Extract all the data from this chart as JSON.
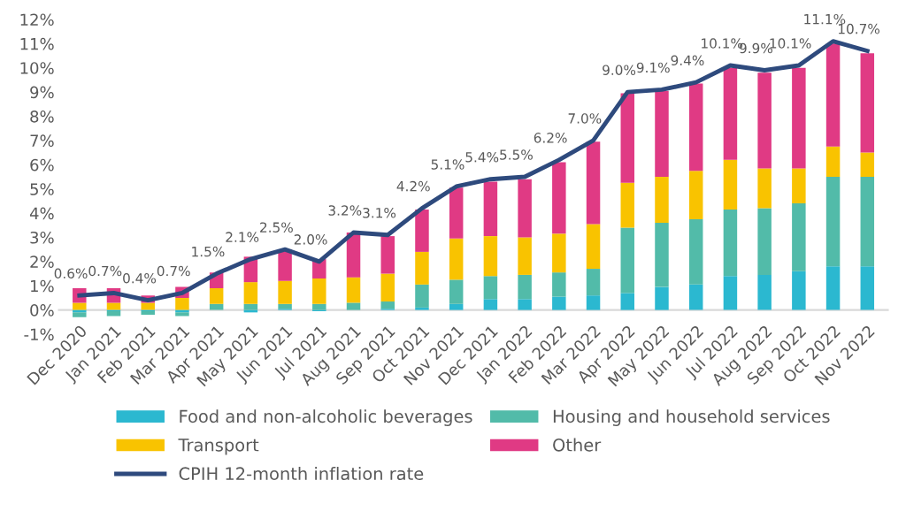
{
  "chart_data": {
    "type": "bar",
    "stacked": true,
    "categories": [
      "Dec 2020",
      "Jan 2021",
      "Feb 2021",
      "Mar 2021",
      "Apr 2021",
      "May 2021",
      "Jun 2021",
      "Jul 2021",
      "Aug 2021",
      "Sep 2021",
      "Oct 2021",
      "Nov 2021",
      "Dec 2021",
      "Jan 2022",
      "Feb 2022",
      "Mar 2022",
      "Apr 2022",
      "May 2022",
      "Jun 2022",
      "Jul 2022",
      "Aug 2022",
      "Sep 2022",
      "Oct 2022",
      "Nov 2022"
    ],
    "series": [
      {
        "name": "Food and non-alcoholic beverages",
        "color": "#2bb8d0",
        "values": [
          -0.1,
          -0.05,
          -0.05,
          -0.1,
          0,
          -0.1,
          0.05,
          -0.05,
          0,
          0.05,
          0.1,
          0.25,
          0.45,
          0.45,
          0.55,
          0.6,
          0.7,
          0.95,
          1.05,
          1.4,
          1.45,
          1.6,
          1.8,
          1.8
        ]
      },
      {
        "name": "Housing and household services",
        "color": "#52bba9",
        "values": [
          -0.2,
          -0.2,
          -0.15,
          -0.15,
          0.25,
          0.25,
          0.2,
          0.25,
          0.3,
          0.3,
          0.95,
          1.0,
          0.95,
          1.0,
          1.0,
          1.1,
          2.7,
          2.65,
          2.7,
          2.75,
          2.75,
          2.8,
          3.7,
          3.7
        ]
      },
      {
        "name": "Transport",
        "color": "#f9c300",
        "values": [
          0.3,
          0.3,
          0.3,
          0.5,
          0.65,
          0.9,
          0.95,
          1.05,
          1.05,
          1.15,
          1.35,
          1.7,
          1.65,
          1.55,
          1.6,
          1.85,
          1.85,
          1.9,
          2.0,
          2.05,
          1.65,
          1.45,
          1.25,
          1.0
        ]
      },
      {
        "name": "Other",
        "color": "#e03a84",
        "values": [
          0.6,
          0.6,
          0.3,
          0.45,
          0.65,
          1.05,
          1.3,
          0.8,
          1.85,
          1.55,
          1.75,
          2.1,
          2.25,
          2.4,
          2.95,
          3.4,
          3.7,
          3.55,
          3.6,
          3.8,
          3.95,
          4.15,
          4.25,
          4.1
        ]
      },
      {
        "name": "CPIH 12-month inflation rate",
        "type": "line",
        "color": "#2e4a7d",
        "values": [
          0.6,
          0.7,
          0.4,
          0.7,
          1.5,
          2.1,
          2.5,
          2.0,
          3.2,
          3.1,
          4.2,
          5.1,
          5.4,
          5.5,
          6.2,
          7.0,
          9.0,
          9.1,
          9.4,
          10.1,
          9.9,
          10.1,
          11.1,
          10.7
        ],
        "value_labels": [
          "0.6%",
          "0.7%",
          "0.4%",
          "0.7%",
          "1.5%",
          "2.1%",
          "2.5%",
          "2.0%",
          "3.2%",
          "3.1%",
          "4.2%",
          "5.1%",
          "5.4%",
          "5.5%",
          "6.2%",
          "7.0%",
          "9.0%",
          "9.1%",
          "9.4%",
          "10.1%",
          "9.9%",
          "10.1%",
          "11.1%",
          "10.7%"
        ]
      }
    ],
    "ylim": [
      -1,
      12
    ],
    "yticks": [
      {
        "value": -1,
        "label": "-1%"
      },
      {
        "value": 0,
        "label": "0%"
      },
      {
        "value": 1,
        "label": "1%"
      },
      {
        "value": 2,
        "label": "2%"
      },
      {
        "value": 3,
        "label": "3%"
      },
      {
        "value": 4,
        "label": "4%"
      },
      {
        "value": 5,
        "label": "5%"
      },
      {
        "value": 6,
        "label": "6%"
      },
      {
        "value": 7,
        "label": "7%"
      },
      {
        "value": 8,
        "label": "8%"
      },
      {
        "value": 9,
        "label": "9%"
      },
      {
        "value": 10,
        "label": "10%"
      },
      {
        "value": 11,
        "label": "11%"
      },
      {
        "value": 12,
        "label": "12%"
      }
    ],
    "grid": false,
    "legend": "bottom",
    "marker": "none"
  }
}
